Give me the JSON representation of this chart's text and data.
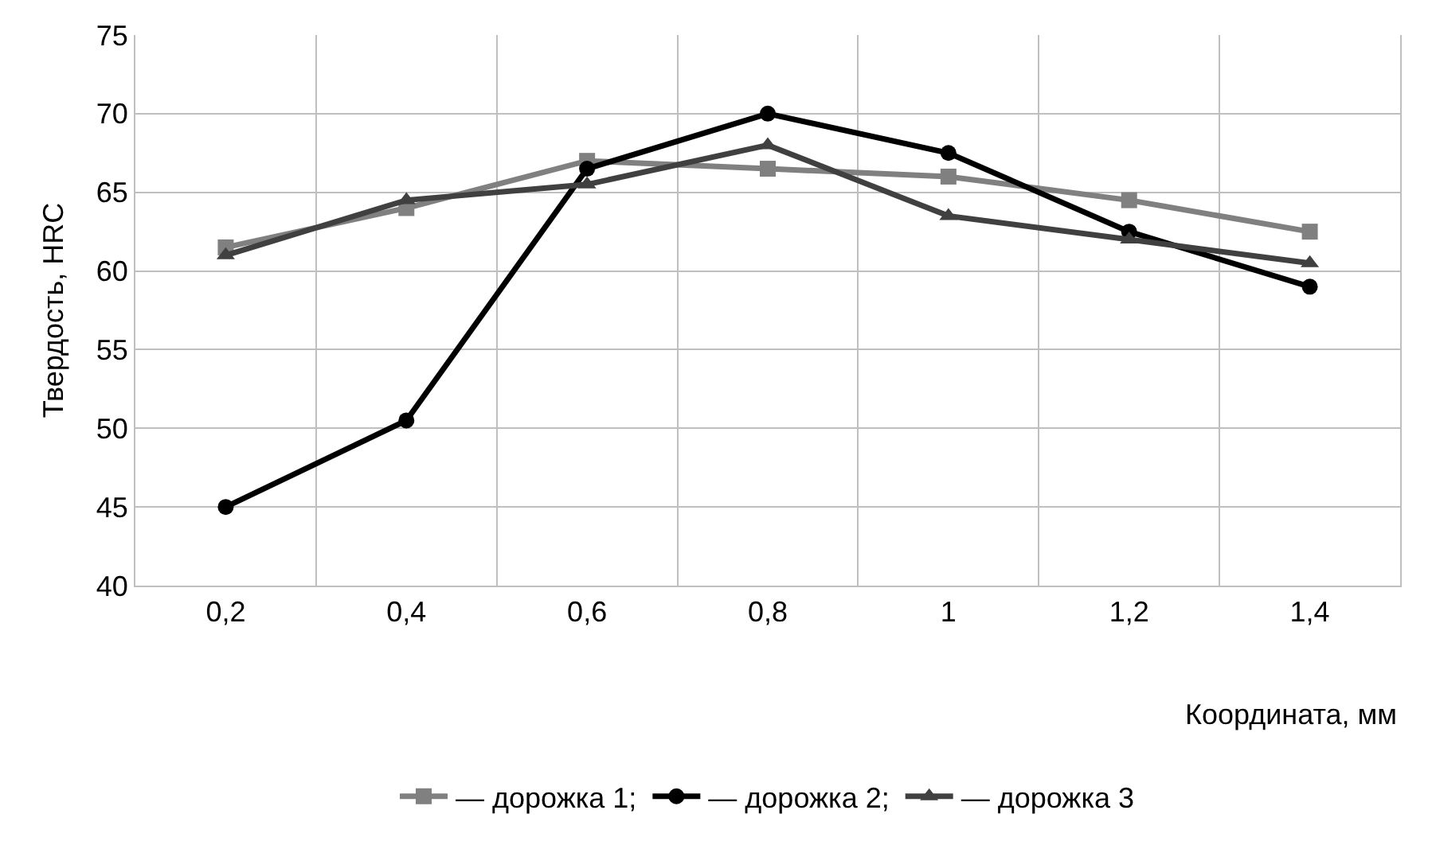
{
  "chart_data": {
    "type": "line",
    "xlabel": "Координата, мм",
    "ylabel": "Твердость, HRC",
    "categories": [
      "0,2",
      "0,4",
      "0,6",
      "0,8",
      "1",
      "1,2",
      "1,4"
    ],
    "series": [
      {
        "name": "— дорожка 1;",
        "color": "#808080",
        "marker": "square",
        "values": [
          61.5,
          64,
          67,
          66.5,
          66,
          64.5,
          62.5
        ]
      },
      {
        "name": "— дорожка 2;",
        "color": "#000000",
        "marker": "circle",
        "values": [
          45,
          50.5,
          66.5,
          70,
          67.5,
          62.5,
          59
        ]
      },
      {
        "name": "— дорожка 3",
        "color": "#404040",
        "marker": "triangle",
        "values": [
          61,
          64.5,
          65.5,
          68,
          63.5,
          62,
          60.5
        ]
      }
    ],
    "ylim": [
      40,
      75
    ],
    "yticks": [
      40,
      45,
      50,
      55,
      60,
      65,
      70,
      75
    ],
    "grid": true,
    "legend": "bottom",
    "line_style": "solid"
  }
}
